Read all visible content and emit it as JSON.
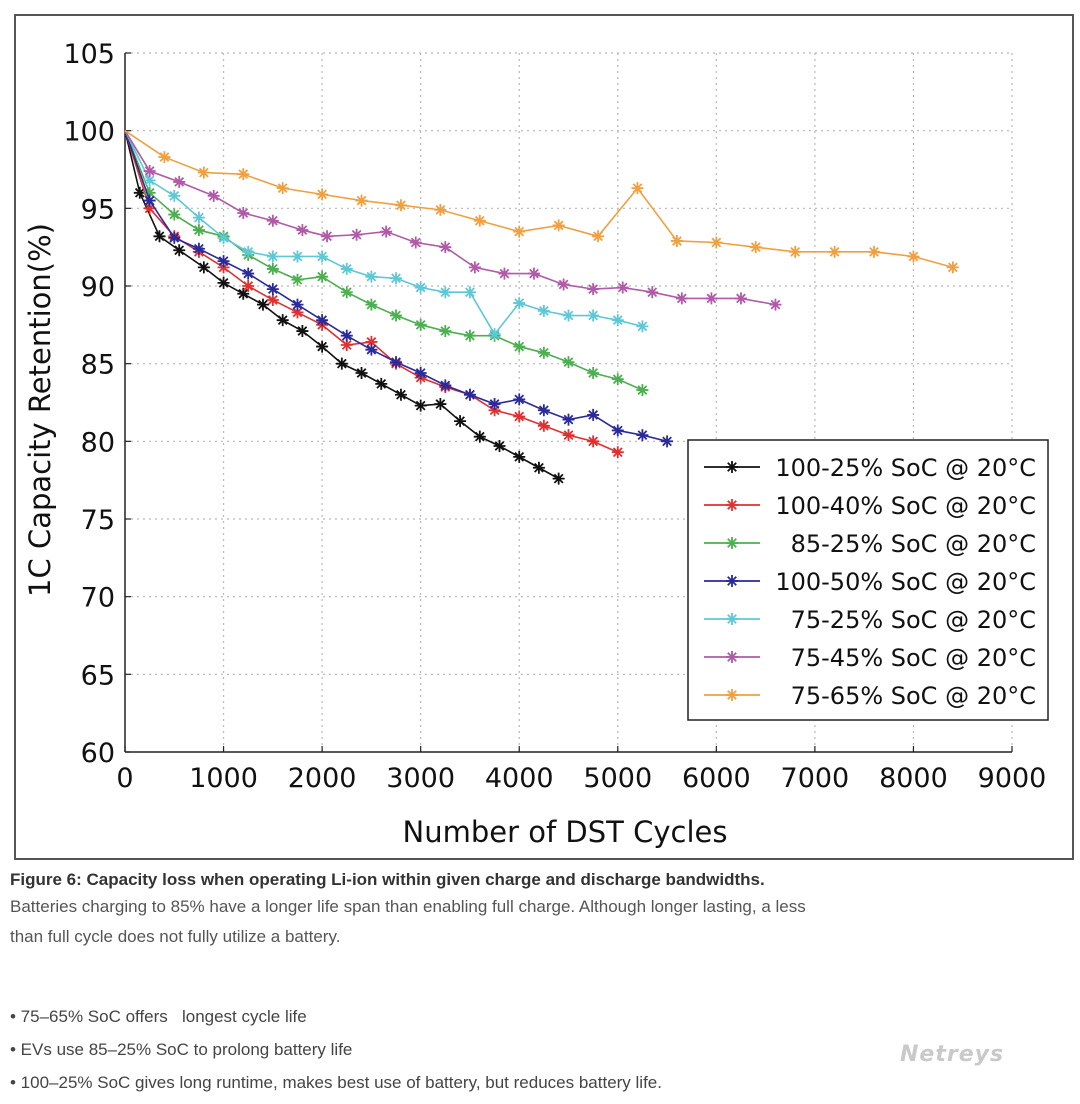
{
  "chart_data": {
    "type": "line",
    "title": "",
    "xlabel": "Number of DST Cycles",
    "ylabel": "1C Capacity Retention(%)",
    "xlim": [
      0,
      9000
    ],
    "ylim": [
      60,
      105
    ],
    "xticks": [
      0,
      1000,
      2000,
      3000,
      4000,
      5000,
      6000,
      7000,
      8000,
      9000
    ],
    "yticks": [
      60,
      65,
      70,
      75,
      80,
      85,
      90,
      95,
      100,
      105
    ],
    "grid": true,
    "legend_position": "right-middle",
    "series": [
      {
        "name": "100-25% SoC @ 20°C",
        "color": "#111111",
        "x": [
          0,
          150,
          350,
          550,
          800,
          1000,
          1200,
          1400,
          1600,
          1800,
          2000,
          2200,
          2400,
          2600,
          2800,
          3000,
          3200,
          3400,
          3600,
          3800,
          4000,
          4200,
          4400
        ],
        "y": [
          100,
          96,
          93.2,
          92.3,
          91.2,
          90.2,
          89.5,
          88.8,
          87.8,
          87.1,
          86.1,
          85.0,
          84.4,
          83.7,
          83.0,
          82.3,
          82.4,
          81.3,
          80.3,
          79.7,
          79.0,
          78.3,
          77.6
        ]
      },
      {
        "name": "100-40% SoC @ 20°C",
        "color": "#e03030",
        "x": [
          0,
          250,
          500,
          750,
          1000,
          1250,
          1500,
          1750,
          2000,
          2250,
          2500,
          2750,
          3000,
          3250,
          3500,
          3750,
          4000,
          4250,
          4500,
          4750,
          5000
        ],
        "y": [
          100,
          95,
          93.2,
          92.2,
          91.2,
          90.0,
          89.1,
          88.3,
          87.5,
          86.2,
          86.4,
          85.0,
          84.1,
          83.5,
          83.0,
          82.0,
          81.6,
          81.0,
          80.4,
          80.0,
          79.3
        ]
      },
      {
        "name": "85-25% SoC @ 20°C",
        "color": "#4caf50",
        "x": [
          0,
          250,
          500,
          750,
          1000,
          1250,
          1500,
          1750,
          2000,
          2250,
          2500,
          2750,
          3000,
          3250,
          3500,
          3750,
          4000,
          4250,
          4500,
          4750,
          5000,
          5250
        ],
        "y": [
          100,
          96,
          94.6,
          93.6,
          93.2,
          92.0,
          91.1,
          90.4,
          90.6,
          89.6,
          88.8,
          88.1,
          87.5,
          87.1,
          86.8,
          86.8,
          86.1,
          85.7,
          85.1,
          84.4,
          84.0,
          83.3
        ]
      },
      {
        "name": "100-50% SoC @ 20°C",
        "color": "#2a2a9a",
        "x": [
          0,
          250,
          500,
          750,
          1000,
          1250,
          1500,
          1750,
          2000,
          2250,
          2500,
          2750,
          3000,
          3250,
          3500,
          3750,
          4000,
          4250,
          4500,
          4750,
          5000,
          5250,
          5500
        ],
        "y": [
          100,
          95.5,
          93.1,
          92.4,
          91.6,
          90.8,
          89.8,
          88.8,
          87.8,
          86.8,
          85.9,
          85.1,
          84.4,
          83.6,
          83.0,
          82.4,
          82.7,
          82.0,
          81.4,
          81.7,
          80.7,
          80.4,
          80.0
        ]
      },
      {
        "name": "75-25% SoC @ 20°C",
        "color": "#5ec8d6",
        "x": [
          0,
          250,
          500,
          750,
          1000,
          1250,
          1500,
          1750,
          2000,
          2250,
          2500,
          2750,
          3000,
          3250,
          3500,
          3750,
          4000,
          4250,
          4500,
          4750,
          5000,
          5250
        ],
        "y": [
          100,
          96.8,
          95.8,
          94.4,
          93.1,
          92.2,
          91.9,
          91.9,
          91.9,
          91.1,
          90.6,
          90.5,
          89.9,
          89.6,
          89.6,
          86.9,
          88.9,
          88.4,
          88.1,
          88.1,
          87.8,
          87.4
        ]
      },
      {
        "name": "75-45% SoC @ 20°C",
        "color": "#b05aa8",
        "x": [
          0,
          250,
          550,
          900,
          1200,
          1500,
          1800,
          2050,
          2350,
          2650,
          2950,
          3250,
          3550,
          3850,
          4150,
          4450,
          4750,
          5050,
          5350,
          5650,
          5950,
          6250,
          6600
        ],
        "y": [
          100,
          97.4,
          96.7,
          95.8,
          94.7,
          94.2,
          93.6,
          93.2,
          93.3,
          93.5,
          92.8,
          92.5,
          91.2,
          90.8,
          90.8,
          90.1,
          89.8,
          89.9,
          89.6,
          89.2,
          89.2,
          89.2,
          88.8
        ]
      },
      {
        "name": "75-65% SoC @ 20°C",
        "color": "#f0a040",
        "x": [
          0,
          400,
          800,
          1200,
          1600,
          2000,
          2400,
          2800,
          3200,
          3600,
          4000,
          4400,
          4800,
          5200,
          5600,
          6000,
          6400,
          6800,
          7200,
          7600,
          8000,
          8400
        ],
        "y": [
          100,
          98.3,
          97.3,
          97.2,
          96.3,
          95.9,
          95.5,
          95.2,
          94.9,
          94.2,
          93.5,
          93.9,
          93.2,
          96.3,
          92.9,
          92.8,
          92.5,
          92.2,
          92.2,
          92.2,
          91.9,
          91.2
        ]
      }
    ]
  },
  "caption": {
    "title": "Figure 6: Capacity loss when operating Li-ion within given charge and discharge bandwidths.",
    "line1": "Batteries charging to 85% have a longer life span than enabling full charge. Although longer lasting, a less",
    "line2": "than full cycle does not fully utilize a battery."
  },
  "bullets": [
    "• 75–65% SoC offers   longest cycle life",
    "• EVs use 85–25% SoC to prolong battery life",
    "• 100–25% SoC gives long runtime, makes best use of battery, but reduces battery life."
  ],
  "watermark": "Netreys"
}
